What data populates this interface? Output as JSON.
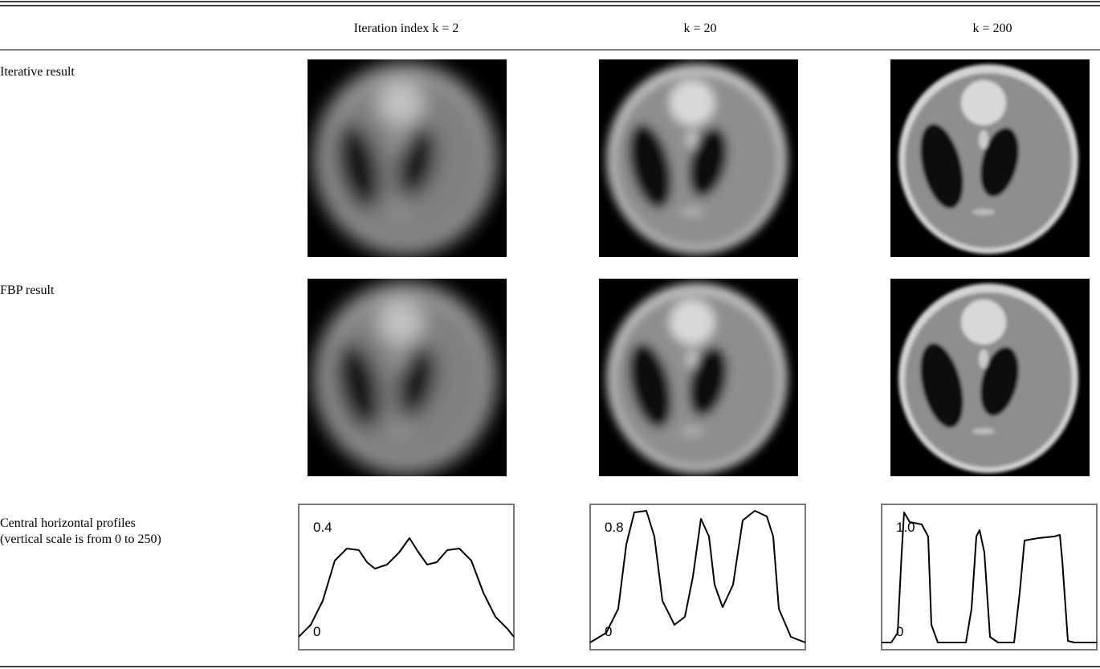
{
  "header": {
    "columns": [
      "Iteration index k = 2",
      "k = 20",
      "k = 200"
    ]
  },
  "rows": [
    {
      "label": "Iterative result"
    },
    {
      "label": "FBP result"
    },
    {
      "label": [
        "Central horizontal profiles",
        "(vertical scale is from 0 to 250)"
      ]
    }
  ],
  "profiles": [
    {
      "top": "0.4",
      "bottom": "0"
    },
    {
      "top": "0.8",
      "bottom": "0"
    },
    {
      "top": "1.0",
      "bottom": "0"
    }
  ]
}
